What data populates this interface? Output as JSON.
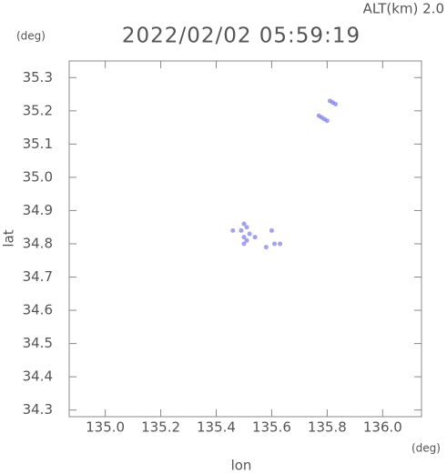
{
  "chart_data": {
    "type": "scatter",
    "title": "2022/02/02 05:59:19",
    "annotation": "ALT(km) 2.0",
    "y_unit": "(deg)",
    "x_unit": "(deg)",
    "xlabel": "lon",
    "ylabel": "lat",
    "color": "#7a7ae8",
    "x": [
      135.81,
      135.82,
      135.83,
      135.77,
      135.78,
      135.79,
      135.8,
      135.5,
      135.51,
      135.49,
      135.5,
      135.51,
      135.5,
      135.46,
      135.54,
      135.6,
      135.58,
      135.61,
      135.63,
      135.52
    ],
    "values": [
      35.23,
      35.225,
      35.22,
      35.185,
      35.18,
      35.175,
      35.17,
      34.86,
      34.85,
      34.84,
      34.82,
      34.81,
      34.8,
      34.84,
      34.82,
      34.84,
      34.79,
      34.8,
      34.8,
      34.83
    ],
    "xlim": [
      134.87,
      136.14
    ],
    "ylim": [
      34.28,
      35.35
    ],
    "xticks": [
      {
        "value": 135.0,
        "label": "135.0"
      },
      135.2,
      135.4,
      135.6,
      135.8,
      {
        "value": 136.0,
        "label": "136.0"
      }
    ],
    "yticks": [
      34.3,
      34.4,
      34.5,
      34.6,
      34.7,
      34.8,
      34.9,
      {
        "value": 35.0,
        "label": "35.0"
      },
      35.1,
      35.2,
      35.3
    ]
  }
}
